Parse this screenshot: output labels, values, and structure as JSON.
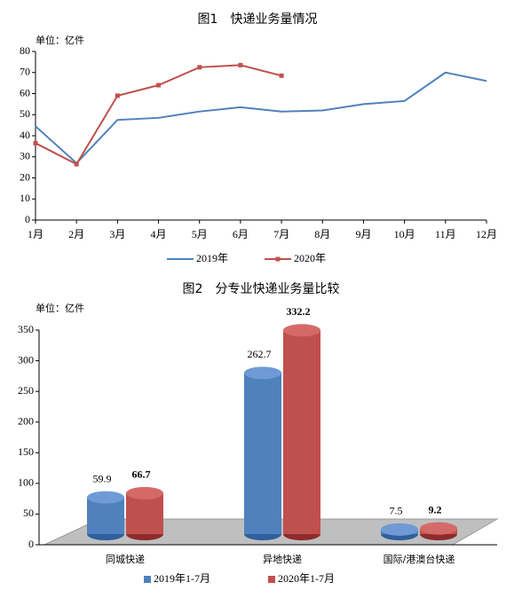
{
  "chart_data": [
    {
      "type": "line",
      "title": "图1　快递业务量情况",
      "unit_label": "单位：亿件",
      "categories": [
        "1月",
        "2月",
        "3月",
        "4月",
        "5月",
        "6月",
        "7月",
        "8月",
        "9月",
        "10月",
        "11月",
        "12月"
      ],
      "series": [
        {
          "name": "2019年",
          "color": "#4f81bd",
          "values": [
            44.5,
            27,
            47.5,
            48.5,
            51.5,
            53.5,
            51.5,
            52,
            55,
            56.5,
            70,
            66
          ]
        },
        {
          "name": "2020年",
          "color": "#c0504d",
          "values": [
            36.5,
            26.5,
            59,
            64,
            72.5,
            73.5,
            68.5,
            null,
            null,
            null,
            null,
            null
          ]
        }
      ],
      "ylim": [
        0,
        80
      ],
      "yticks": [
        0,
        10,
        20,
        30,
        40,
        50,
        60,
        70,
        80
      ],
      "legend": "bottom"
    },
    {
      "type": "bar3d",
      "title": "图2　分专业快递业务量比较",
      "unit_label": "单位：亿件",
      "categories": [
        "同城快递",
        "异地快递",
        "国际/港澳台快递"
      ],
      "series": [
        {
          "name": "2019年1-7月",
          "color": "#4f81bd",
          "values": [
            59.9,
            262.7,
            7.5
          ]
        },
        {
          "name": "2020年1-7月",
          "color": "#c0504d",
          "values": [
            66.7,
            332.2,
            9.2
          ]
        }
      ],
      "ylim": [
        0,
        350
      ],
      "yticks": [
        0,
        50,
        100,
        150,
        200,
        250,
        300,
        350
      ],
      "legend": "bottom"
    }
  ]
}
